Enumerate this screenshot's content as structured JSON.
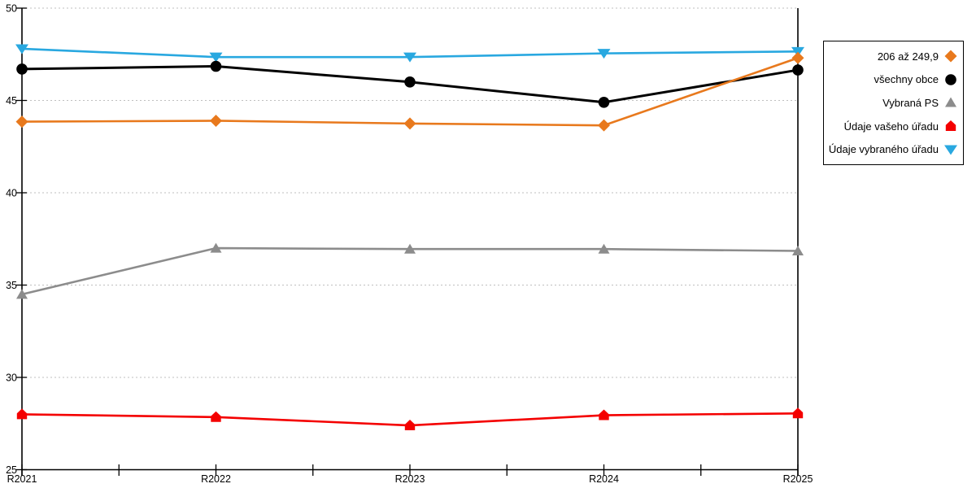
{
  "chart_data": {
    "type": "line",
    "title": "",
    "categories": [
      "R2021",
      "R2022",
      "R2023",
      "R2024",
      "R2025"
    ],
    "ylim": [
      25,
      50
    ],
    "yticks": [
      25,
      30,
      35,
      40,
      45,
      50
    ],
    "grid": "horizontal dotted gridlines on",
    "legend_position": "right outside, boxed",
    "axis_color": "#000000",
    "grid_color": "#bfbfbf",
    "series": [
      {
        "name": "206 až 249,9",
        "color": "#e8791d",
        "marker": "diamond",
        "values": [
          43.85,
          43.9,
          43.75,
          43.65,
          47.3
        ]
      },
      {
        "name": "všechny obce",
        "color": "#000000",
        "marker": "circle",
        "values": [
          46.7,
          46.85,
          46.0,
          44.9,
          46.65
        ]
      },
      {
        "name": "Vybraná PS",
        "color": "#8c8c8c",
        "marker": "triangle-up",
        "values": [
          34.5,
          37.0,
          36.95,
          36.95,
          36.85
        ]
      },
      {
        "name": "Údaje vašeho úřadu",
        "color": "#f40000",
        "marker": "pentagon",
        "values": [
          28.0,
          27.85,
          27.4,
          27.95,
          28.05
        ]
      },
      {
        "name": "Údaje vybraného úřadu",
        "color": "#29a8e0",
        "marker": "triangle-down",
        "values": [
          47.8,
          47.35,
          47.35,
          47.55,
          47.65
        ]
      }
    ]
  }
}
